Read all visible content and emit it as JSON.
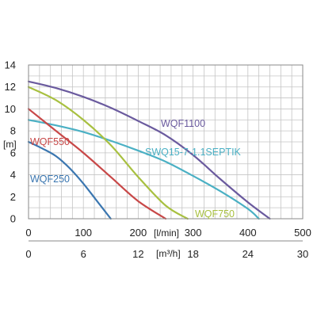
{
  "chart_data": {
    "type": "line",
    "title": "",
    "ylabel": "[m]",
    "xlabel_primary": "[l/min]",
    "xlabel_secondary": "[m³/h]",
    "xlim": [
      0,
      500
    ],
    "ylim": [
      0,
      14
    ],
    "y_ticks": [
      0,
      2,
      4,
      6,
      8,
      10,
      12,
      14
    ],
    "x_ticks_primary": [
      0,
      100,
      200,
      300,
      400,
      500
    ],
    "x_ticks_secondary": [
      0,
      6,
      12,
      18,
      24,
      30
    ],
    "grid": true,
    "series": [
      {
        "name": "WQF1100",
        "color": "#6a5a9e",
        "x": [
          0,
          50,
          100,
          150,
          200,
          250,
          300,
          350,
          400,
          440
        ],
        "y": [
          12.5,
          11.9,
          11.1,
          10.1,
          8.9,
          7.6,
          5.8,
          3.6,
          1.5,
          0
        ]
      },
      {
        "name": "SWQ15-7-1.1SEPTIK",
        "color": "#4ab0c4",
        "x": [
          0,
          50,
          100,
          150,
          200,
          250,
          300,
          350,
          400,
          420
        ],
        "y": [
          9.0,
          8.5,
          7.9,
          7.1,
          6.2,
          5.2,
          3.9,
          2.5,
          0.9,
          0
        ]
      },
      {
        "name": "WQF750",
        "color": "#a8c040",
        "x": [
          0,
          50,
          100,
          150,
          200,
          250,
          290
        ],
        "y": [
          12.0,
          10.8,
          9.0,
          6.7,
          3.8,
          1.2,
          0
        ]
      },
      {
        "name": "WQF550",
        "color": "#c84848",
        "x": [
          0,
          50,
          100,
          150,
          200,
          250
        ],
        "y": [
          10.0,
          8.0,
          6.0,
          3.8,
          1.6,
          0
        ]
      },
      {
        "name": "WQF250",
        "color": "#3a76b0",
        "x": [
          0,
          25,
          50,
          75,
          100,
          125,
          150
        ],
        "y": [
          7.0,
          6.4,
          5.7,
          4.6,
          3.2,
          1.6,
          0
        ]
      }
    ]
  }
}
